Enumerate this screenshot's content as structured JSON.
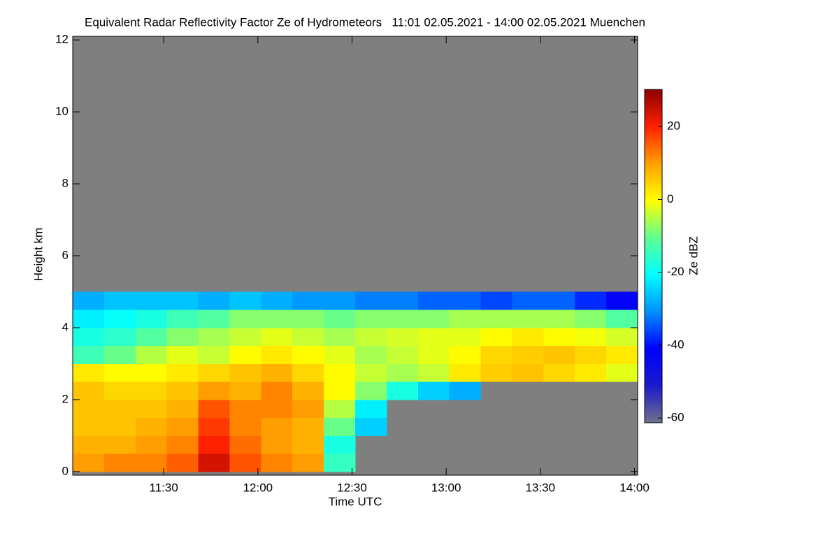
{
  "chart_data": {
    "type": "heatmap",
    "title": "Equivalent Radar Reflectivity Factor Ze of Hydrometeors   11:01 02.05.2021 - 14:00 02.05.2021 Muenchen",
    "x_label": "Time UTC",
    "y_label": "Height km",
    "colorbar_label": "Ze dBZ",
    "x": [
      666,
      676,
      686,
      696,
      706,
      716,
      726,
      736,
      746,
      756,
      766,
      776,
      786,
      796,
      806,
      816,
      826,
      836
    ],
    "y": [
      0.25,
      0.75,
      1.25,
      1.75,
      2.25,
      2.75,
      3.25,
      3.75,
      4.25,
      4.75
    ],
    "values": [
      [
        10,
        12,
        12,
        15,
        24,
        16,
        12,
        10,
        -15,
        null,
        null,
        null,
        null,
        null,
        null,
        null,
        null,
        null
      ],
      [
        8,
        8,
        10,
        12,
        20,
        14,
        10,
        8,
        -18,
        null,
        null,
        null,
        null,
        null,
        null,
        null,
        null,
        null
      ],
      [
        6,
        6,
        8,
        10,
        18,
        12,
        10,
        8,
        -10,
        -25,
        null,
        null,
        null,
        null,
        null,
        null,
        null,
        null
      ],
      [
        6,
        6,
        6,
        8,
        16,
        12,
        12,
        10,
        -5,
        -22,
        null,
        null,
        null,
        null,
        null,
        null,
        null,
        null
      ],
      [
        6,
        4,
        4,
        6,
        10,
        8,
        12,
        8,
        0,
        -8,
        -18,
        -25,
        -28,
        null,
        null,
        null,
        null,
        null
      ],
      [
        2,
        0,
        0,
        2,
        4,
        6,
        8,
        4,
        0,
        -4,
        -6,
        -4,
        2,
        5,
        6,
        4,
        2,
        -2
      ],
      [
        -14,
        -10,
        -5,
        -2,
        -4,
        0,
        2,
        0,
        -2,
        -6,
        -4,
        -2,
        0,
        4,
        5,
        6,
        4,
        2
      ],
      [
        -18,
        -16,
        -12,
        -8,
        -6,
        -4,
        -2,
        -4,
        -6,
        -4,
        -3,
        -2,
        -2,
        0,
        2,
        0,
        -1,
        -3
      ],
      [
        -22,
        -20,
        -18,
        -14,
        -12,
        -8,
        -8,
        -8,
        -10,
        -8,
        -8,
        -8,
        -6,
        -6,
        -6,
        -6,
        -8,
        -12
      ],
      [
        -28,
        -26,
        -26,
        -26,
        -28,
        -26,
        -28,
        -30,
        -30,
        -32,
        -32,
        -34,
        -34,
        -36,
        -34,
        -34,
        -38,
        -42
      ]
    ],
    "xlim": [
      661,
      841
    ],
    "xticks": [
      {
        "value": 690,
        "label": "11:30"
      },
      {
        "value": 720,
        "label": "12:00"
      },
      {
        "value": 750,
        "label": "12:30"
      },
      {
        "value": 780,
        "label": "13:00"
      },
      {
        "value": 810,
        "label": "13:30"
      },
      {
        "value": 840,
        "label": "14:00"
      }
    ],
    "ylim": [
      -0.1,
      12.1
    ],
    "yticks": [
      0,
      2,
      4,
      6,
      8,
      10,
      12
    ],
    "clim": [
      -61.3,
      30.2
    ],
    "cticks": [
      -60,
      -40,
      -20,
      0,
      20
    ],
    "colormap": [
      "#70708c",
      "#1a1acc",
      "#0000ff",
      "#0090ff",
      "#00ffff",
      "#60ff90",
      "#ffff00",
      "#ffa000",
      "#ff2000",
      "#8b0000"
    ],
    "missing_color": "#7f7f7f"
  }
}
